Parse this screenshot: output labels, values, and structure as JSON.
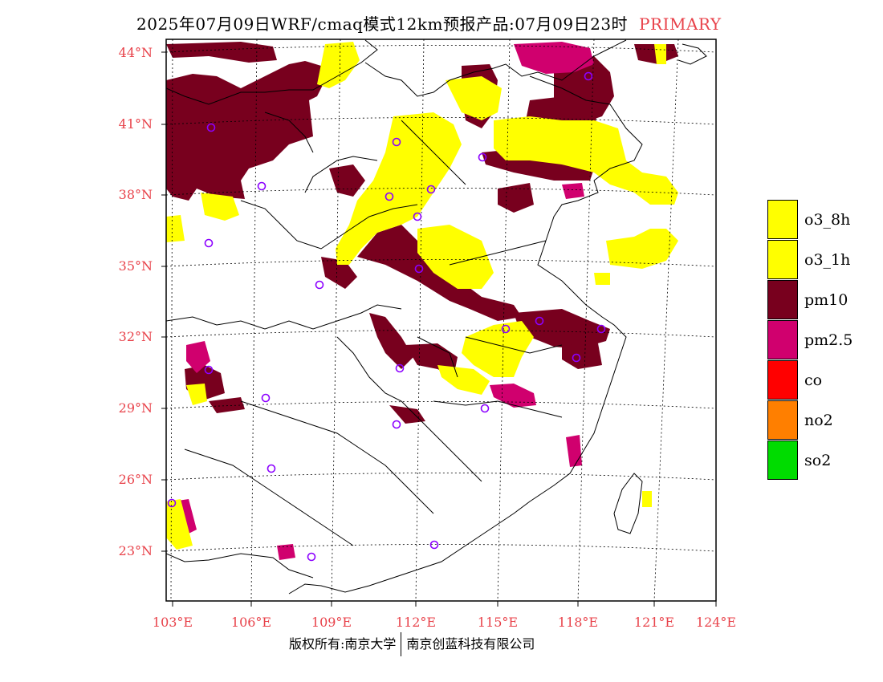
{
  "header": {
    "title": "2025年07月09日WRF/cmaq模式12km预报产品:07月09日23时",
    "tag": "PRIMARY"
  },
  "map": {
    "lat_labels": [
      "44°N",
      "41°N",
      "38°N",
      "35°N",
      "32°N",
      "29°N",
      "26°N",
      "23°N"
    ],
    "lon_labels": [
      "103°E",
      "106°E",
      "109°E",
      "112°E",
      "115°E",
      "118°E",
      "121°E",
      "124°E"
    ],
    "colors": {
      "o3_8h": "#ffff00",
      "o3_1h": "#ffff00",
      "pm10": "#78001e",
      "pm25": "#d0006e",
      "co": "#ff0000",
      "no2": "#ff7f00",
      "so2": "#00dc00",
      "station": "#8c00ff",
      "lat_lon_text": "#e8424a"
    }
  },
  "legend": {
    "items": [
      {
        "label": "o3_8h",
        "color": "#ffff00"
      },
      {
        "label": "o3_1h",
        "color": "#ffff00"
      },
      {
        "label": "pm10",
        "color": "#78001e"
      },
      {
        "label": "pm2.5",
        "color": "#d0006e"
      },
      {
        "label": "co",
        "color": "#ff0000"
      },
      {
        "label": "no2",
        "color": "#ff7f00"
      },
      {
        "label": "so2",
        "color": "#00dc00"
      }
    ]
  },
  "footer": {
    "left": "版权所有:南京大学",
    "right": "南京创蓝科技有限公司"
  }
}
